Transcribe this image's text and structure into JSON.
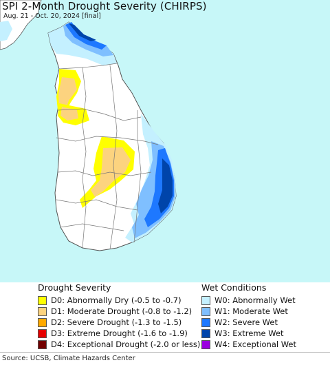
{
  "map": {
    "title": "SPI 2-Month Drought Severity (CHIRPS)",
    "subtitle": "Aug. 21 - Oct. 20, 2024 [final]",
    "colors": {
      "ocean": "#c7f7f8",
      "land": "#ffffff",
      "border": "#555555"
    }
  },
  "legend": {
    "drought": {
      "heading": "Drought Severity",
      "items": [
        {
          "code": "D0",
          "label": "D0: Abnormally Dry (-0.5 to -0.7)",
          "color": "#ffff00"
        },
        {
          "code": "D1",
          "label": "D1: Moderate Drought (-0.8 to -1.2)",
          "color": "#fcd37f"
        },
        {
          "code": "D2",
          "label": "D2: Severe Drought (-1.3 to -1.5)",
          "color": "#ffaa00"
        },
        {
          "code": "D3",
          "label": "D3: Extreme Drought (-1.6 to -1.9)",
          "color": "#e60000"
        },
        {
          "code": "D4",
          "label": "D4: Exceptional Drought (-2.0 or less)",
          "color": "#730000"
        }
      ]
    },
    "wet": {
      "heading": "Wet Conditions",
      "items": [
        {
          "code": "W0",
          "label": "W0: Abnormally Wet",
          "color": "#c4f0ff"
        },
        {
          "code": "W1",
          "label": "W1: Moderate Wet",
          "color": "#7fbfff"
        },
        {
          "code": "W2",
          "label": "W2: Severe Wet",
          "color": "#1e78ff"
        },
        {
          "code": "W3",
          "label": "W3: Extreme Wet",
          "color": "#0044aa"
        },
        {
          "code": "W4",
          "label": "W4: Exceptional Wet",
          "color": "#9b00e0"
        }
      ]
    }
  },
  "footer": {
    "source": "Source: UCSB, Climate Hazards Center"
  }
}
